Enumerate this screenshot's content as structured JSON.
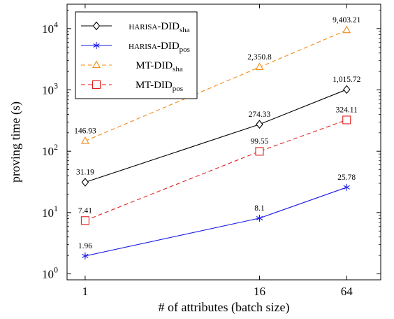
{
  "chart_data": {
    "type": "line",
    "xlabel": "# of attributes (batch size)",
    "ylabel": "proving time (s)",
    "x_scale": "log",
    "y_scale": "log",
    "xlim": [
      0.75,
      110
    ],
    "ylim": [
      0.8,
      25000
    ],
    "x_ticks": [
      {
        "value": 1,
        "label": "1"
      },
      {
        "value": 16,
        "label": "16"
      },
      {
        "value": 64,
        "label": "64"
      }
    ],
    "y_ticks": [
      {
        "value": 1,
        "base": "10",
        "exp": "0"
      },
      {
        "value": 10,
        "base": "10",
        "exp": "1"
      },
      {
        "value": 100,
        "base": "10",
        "exp": "2"
      },
      {
        "value": 1000,
        "base": "10",
        "exp": "3"
      },
      {
        "value": 10000,
        "base": "10",
        "exp": "4"
      }
    ],
    "grid": false,
    "legend_position": "top-left",
    "series": [
      {
        "name": "harisa-DID",
        "name_sub": "sha",
        "color": "#000000",
        "marker": "diamond",
        "dash": "solid",
        "x": [
          1,
          16,
          64
        ],
        "values": [
          31.19,
          274.33,
          1015.72
        ],
        "labels": [
          "31.19",
          "274.33",
          "1,015.72"
        ]
      },
      {
        "name": "harisa-DID",
        "name_sub": "pos",
        "color": "#1a1ae6",
        "marker": "asterisk",
        "dash": "solid",
        "x": [
          1,
          16,
          64
        ],
        "values": [
          1.96,
          8.1,
          25.78
        ],
        "labels": [
          "1.96",
          "8.1",
          "25.78"
        ]
      },
      {
        "name": "MT-DID",
        "name_sub": "sha",
        "color": "#f08c1a",
        "marker": "triangle",
        "dash": "dashed",
        "x": [
          1,
          16,
          64
        ],
        "values": [
          146.93,
          2350.8,
          9403.21
        ],
        "labels": [
          "146.93",
          "2,350.8",
          "9,403.21"
        ]
      },
      {
        "name": "MT-DID",
        "name_sub": "pos",
        "color": "#e01f1f",
        "marker": "square",
        "dash": "dashed",
        "x": [
          1,
          16,
          64
        ],
        "values": [
          7.41,
          99.55,
          324.11
        ],
        "labels": [
          "7.41",
          "99.55",
          "324.11"
        ]
      }
    ]
  }
}
